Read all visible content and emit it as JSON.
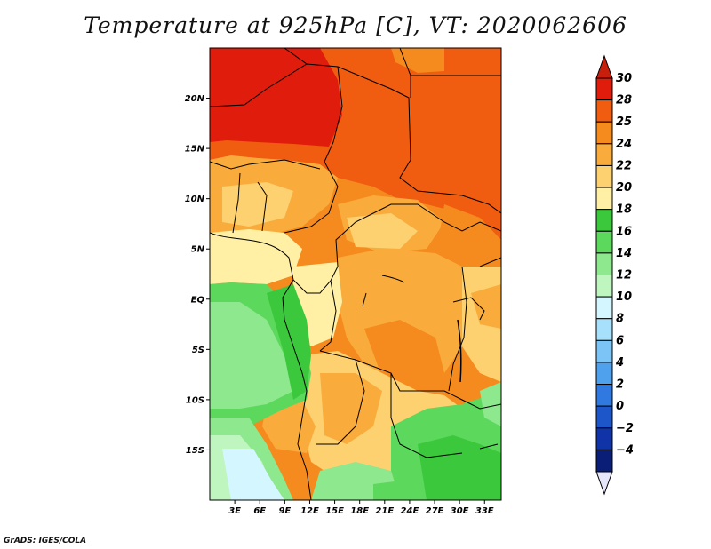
{
  "title": "Temperature at 925hPa [C], VT: 2020062606",
  "credit": "GrADS: IGES/COLA",
  "map": {
    "lat_labels": [
      {
        "text": "20N",
        "lat": 20
      },
      {
        "text": "15N",
        "lat": 15
      },
      {
        "text": "10N",
        "lat": 10
      },
      {
        "text": "5N",
        "lat": 5
      },
      {
        "text": "EQ",
        "lat": 0
      },
      {
        "text": "5S",
        "lat": -5
      },
      {
        "text": "10S",
        "lat": -10
      },
      {
        "text": "15S",
        "lat": -15
      }
    ],
    "lon_labels": [
      {
        "text": "3E",
        "lon": 3
      },
      {
        "text": "6E",
        "lon": 6
      },
      {
        "text": "9E",
        "lon": 9
      },
      {
        "text": "12E",
        "lon": 12
      },
      {
        "text": "15E",
        "lon": 15
      },
      {
        "text": "18E",
        "lon": 18
      },
      {
        "text": "21E",
        "lon": 21
      },
      {
        "text": "24E",
        "lon": 24
      },
      {
        "text": "27E",
        "lon": 27
      },
      {
        "text": "30E",
        "lon": 30
      },
      {
        "text": "33E",
        "lon": 33
      }
    ],
    "extent": {
      "lon_min": 0,
      "lon_max": 35,
      "lat_min": -20,
      "lat_max": 25
    }
  },
  "colorbar": {
    "levels": [
      "30",
      "28",
      "25",
      "24",
      "22",
      "20",
      "18",
      "16",
      "14",
      "12",
      "10",
      "8",
      "6",
      "4",
      "2",
      "0",
      "−2",
      "−4"
    ],
    "colors": [
      "#e01c0c",
      "#f05c10",
      "#f58a1e",
      "#f9ac3c",
      "#fdd070",
      "#fff0a6",
      "#3cc83c",
      "#5cd85c",
      "#8ee88e",
      "#bff5bf",
      "#d4f6fe",
      "#a6e0fb",
      "#7cc4f5",
      "#4fa1ee",
      "#3079e1",
      "#1c56c8",
      "#1034a8",
      "#0a1e78"
    ],
    "top_color": "#c81e0c",
    "bottom_color": "#e6e6fa"
  }
}
